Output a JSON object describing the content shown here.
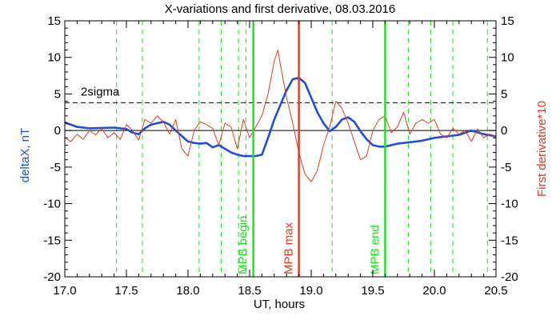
{
  "chart_data": {
    "type": "line",
    "title": "X-variations and first derivative, 08.03.2016",
    "xlabel": "UT, hours",
    "ylabel_left": "deltaX, nT",
    "ylabel_right": "First derivative*10",
    "xlim": [
      17.0,
      20.5
    ],
    "ylim_left": [
      -20,
      15
    ],
    "ylim_right": [
      -20,
      15
    ],
    "xticks": [
      "17.0",
      "17.5",
      "18.0",
      "18.5",
      "19.0",
      "19.5",
      "20.0",
      "20.5"
    ],
    "yticks_left": [
      "15",
      "10",
      "5",
      "0",
      "-5",
      "-10",
      "-15",
      "-20"
    ],
    "yticks_right": [
      "15",
      "10",
      "5",
      "0",
      "-5",
      "-10",
      "-15",
      "-20"
    ],
    "sigma": {
      "label": "2sigma",
      "value": 3.8
    },
    "colors": {
      "deltaX": "#1f4fd8",
      "derivative": "#e03b22",
      "mpb_boundary": "#19e619",
      "mpb_max": "#e03b22",
      "zero": "#000000",
      "sigma": "#000000",
      "guides": "#19e619"
    },
    "vertical_markers": [
      {
        "label": "MPB begin",
        "x": 18.53,
        "color": "#19e619"
      },
      {
        "label": "MPB max",
        "x": 18.9,
        "color": "#e03b22"
      },
      {
        "label": "MPB end",
        "x": 19.6,
        "color": "#19e619"
      }
    ],
    "guide_lines_x": [
      17.42,
      17.63,
      18.09,
      18.27,
      18.41,
      18.47,
      19.17,
      19.79,
      19.97,
      20.15,
      20.43
    ],
    "series": [
      {
        "name": "deltaX",
        "axis": "left",
        "x": [
          17.0,
          17.1,
          17.2,
          17.3,
          17.4,
          17.5,
          17.55,
          17.6,
          17.65,
          17.7,
          17.8,
          17.85,
          17.9,
          18.0,
          18.05,
          18.1,
          18.15,
          18.2,
          18.25,
          18.3,
          18.35,
          18.4,
          18.45,
          18.5,
          18.55,
          18.6,
          18.65,
          18.7,
          18.75,
          18.8,
          18.85,
          18.9,
          18.95,
          19.0,
          19.05,
          19.1,
          19.15,
          19.2,
          19.25,
          19.3,
          19.35,
          19.4,
          19.45,
          19.5,
          19.55,
          19.6,
          19.7,
          19.8,
          19.9,
          20.0,
          20.1,
          20.2,
          20.3,
          20.4,
          20.5
        ],
        "y": [
          1.1,
          0.5,
          0.3,
          0.35,
          0.4,
          0.2,
          -0.3,
          -0.5,
          0.3,
          0.8,
          1.2,
          0.8,
          0.0,
          -1.5,
          -1.7,
          -1.8,
          -1.7,
          -2.3,
          -2.0,
          -2.5,
          -3.0,
          -3.3,
          -3.5,
          -3.5,
          -3.5,
          -3.3,
          -1.0,
          1.5,
          3.5,
          5.5,
          7.0,
          7.2,
          6.5,
          4.5,
          2.5,
          1.0,
          -0.1,
          0.5,
          1.5,
          1.8,
          1.2,
          -0.1,
          -1.2,
          -2.0,
          -2.2,
          -2.2,
          -1.8,
          -1.6,
          -1.4,
          -1.0,
          -0.8,
          -0.6,
          0.0,
          -0.5,
          -0.8
        ]
      },
      {
        "name": "First derivative",
        "axis": "right",
        "x": [
          17.0,
          17.05,
          17.1,
          17.15,
          17.2,
          17.25,
          17.3,
          17.35,
          17.4,
          17.45,
          17.5,
          17.55,
          17.6,
          17.65,
          17.7,
          17.75,
          17.8,
          17.85,
          17.9,
          17.95,
          18.0,
          18.05,
          18.1,
          18.15,
          18.2,
          18.25,
          18.3,
          18.35,
          18.4,
          18.45,
          18.5,
          18.55,
          18.6,
          18.65,
          18.7,
          18.73,
          18.75,
          18.8,
          18.85,
          18.9,
          18.95,
          19.0,
          19.05,
          19.1,
          19.15,
          19.2,
          19.25,
          19.3,
          19.35,
          19.4,
          19.45,
          19.5,
          19.55,
          19.6,
          19.65,
          19.7,
          19.75,
          19.8,
          19.85,
          19.9,
          19.95,
          20.0,
          20.05,
          20.1,
          20.15,
          20.2,
          20.25,
          20.3,
          20.35,
          20.4,
          20.45,
          20.5
        ],
        "y": [
          -1.0,
          -1.5,
          -0.5,
          -1.2,
          0.0,
          -0.6,
          0.3,
          -1.0,
          -0.3,
          -1.2,
          0.8,
          0.0,
          -1.3,
          1.5,
          1.0,
          2.0,
          1.2,
          -0.5,
          1.5,
          -2.5,
          -3.5,
          0.0,
          1.2,
          0.8,
          0.3,
          -2.0,
          1.0,
          0.5,
          -2.5,
          1.5,
          -1.0,
          0.5,
          2.0,
          5.0,
          9.5,
          11.0,
          9.0,
          4.5,
          1.0,
          -3.0,
          -6.0,
          -7.0,
          -5.5,
          -2.0,
          0.5,
          4.0,
          3.0,
          1.0,
          -1.5,
          -4.0,
          -3.5,
          0.0,
          1.5,
          2.0,
          -0.3,
          0.5,
          2.5,
          -0.5,
          1.0,
          1.5,
          1.0,
          1.5,
          -0.5,
          -1.0,
          0.3,
          -0.5,
          0.0,
          -1.5,
          0.2,
          -1.0,
          -0.5,
          -0.8
        ]
      }
    ]
  }
}
